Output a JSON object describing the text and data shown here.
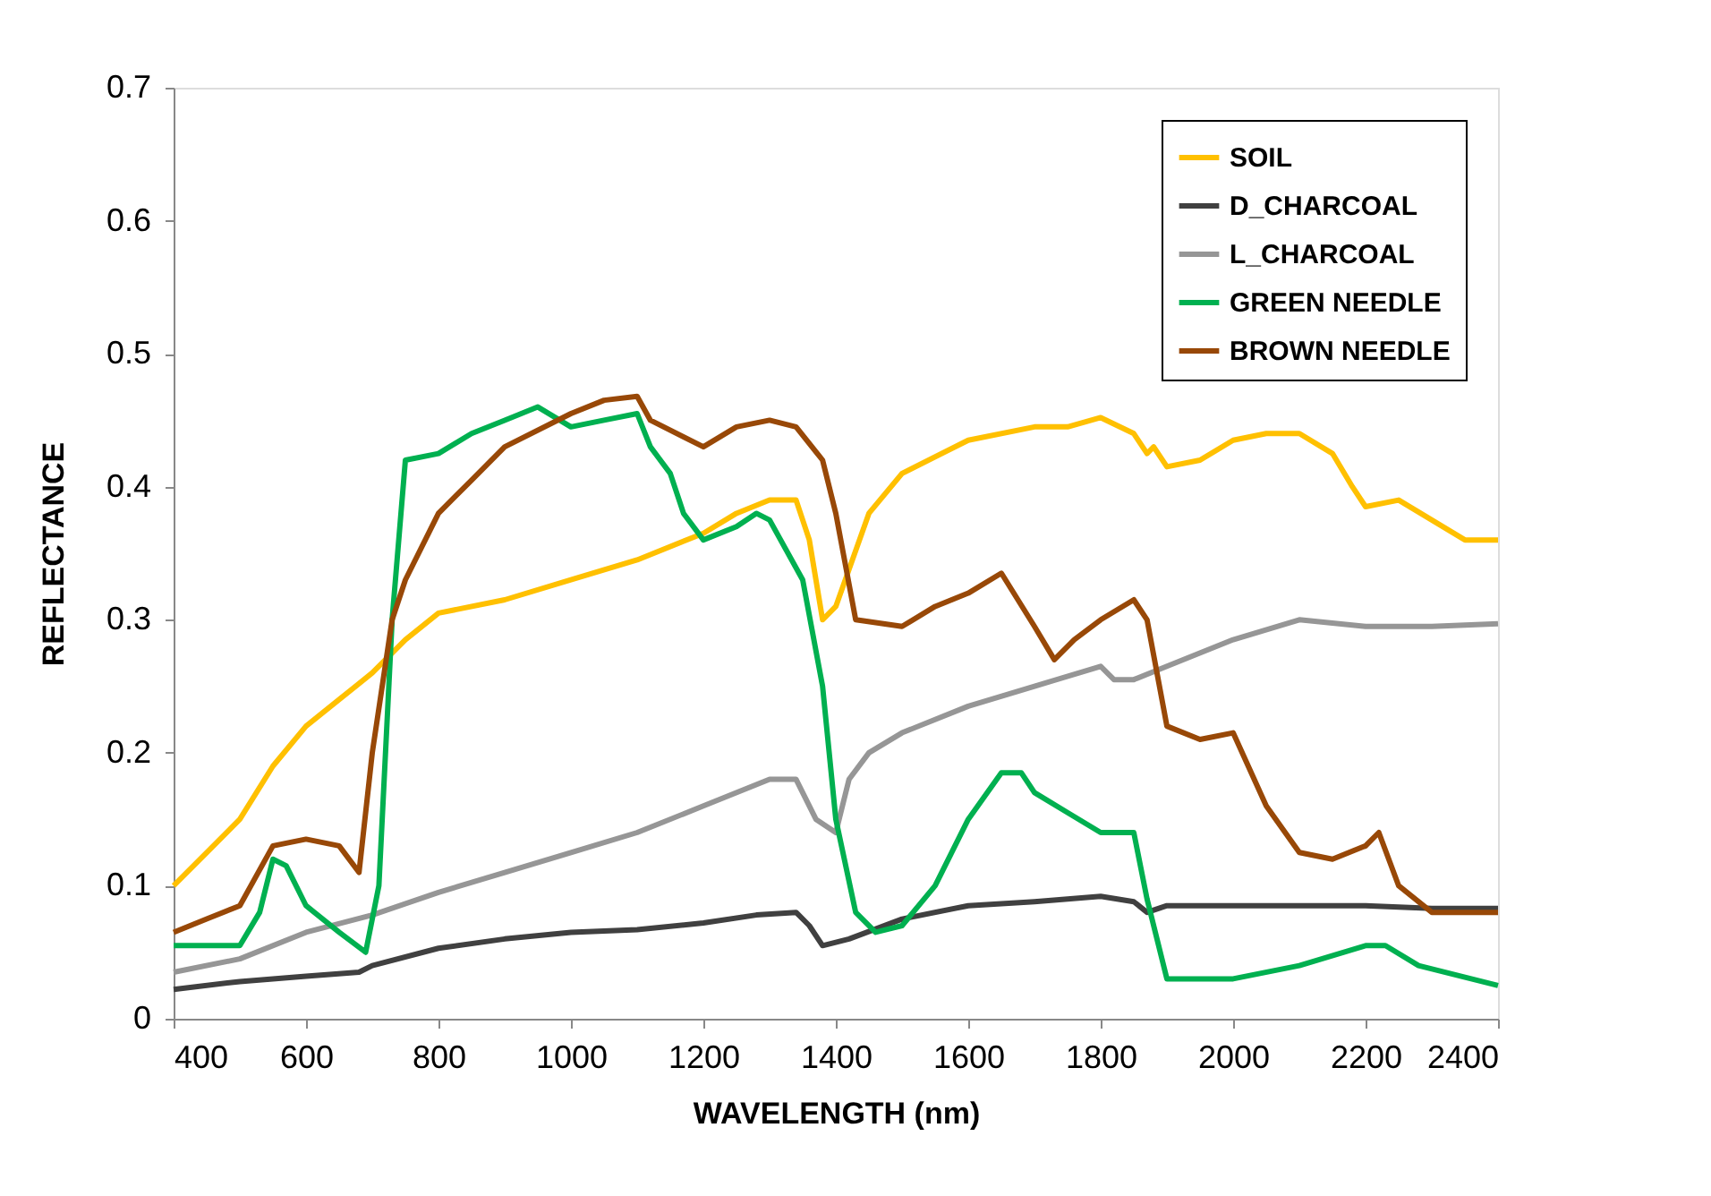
{
  "chart_data": {
    "type": "line",
    "xlabel": "WAVELENGTH (nm)",
    "ylabel": "REFLECTANCE",
    "xlim": [
      400,
      2400
    ],
    "xticks": [
      400,
      600,
      800,
      1000,
      1200,
      1400,
      1600,
      1800,
      2000,
      2200,
      2400
    ],
    "ylim": [
      0,
      0.7
    ],
    "yticks": [
      0,
      0.1,
      0.2,
      0.3,
      0.4,
      0.5,
      0.6,
      0.7
    ],
    "grid": false,
    "legend": "top right",
    "marker": "none",
    "line_style": "solid",
    "series": [
      {
        "name": "SOIL",
        "color": "#ffc000",
        "x": [
          400,
          450,
          500,
          550,
          600,
          650,
          700,
          750,
          800,
          900,
          1000,
          1100,
          1200,
          1250,
          1300,
          1340,
          1360,
          1380,
          1400,
          1450,
          1500,
          1600,
          1700,
          1750,
          1800,
          1850,
          1870,
          1880,
          1900,
          1950,
          2000,
          2050,
          2100,
          2150,
          2180,
          2200,
          2250,
          2300,
          2350,
          2400
        ],
        "values": [
          0.1,
          0.125,
          0.15,
          0.19,
          0.22,
          0.24,
          0.26,
          0.285,
          0.305,
          0.315,
          0.33,
          0.345,
          0.365,
          0.38,
          0.39,
          0.39,
          0.36,
          0.3,
          0.31,
          0.38,
          0.41,
          0.435,
          0.445,
          0.445,
          0.452,
          0.44,
          0.425,
          0.43,
          0.415,
          0.42,
          0.435,
          0.44,
          0.44,
          0.425,
          0.4,
          0.385,
          0.39,
          0.375,
          0.36,
          0.36
        ]
      },
      {
        "name": "D_CHARCOAL",
        "color": "#404040",
        "x": [
          400,
          500,
          600,
          680,
          700,
          800,
          900,
          1000,
          1100,
          1200,
          1280,
          1340,
          1360,
          1380,
          1420,
          1500,
          1600,
          1700,
          1800,
          1850,
          1870,
          1900,
          2000,
          2100,
          2200,
          2300,
          2400
        ],
        "values": [
          0.022,
          0.028,
          0.032,
          0.035,
          0.04,
          0.053,
          0.06,
          0.065,
          0.067,
          0.072,
          0.078,
          0.08,
          0.07,
          0.055,
          0.06,
          0.075,
          0.085,
          0.088,
          0.092,
          0.088,
          0.08,
          0.085,
          0.085,
          0.085,
          0.085,
          0.083,
          0.083
        ]
      },
      {
        "name": "L_CHARCOAL",
        "color": "#969696",
        "x": [
          400,
          500,
          600,
          700,
          800,
          900,
          1000,
          1100,
          1200,
          1300,
          1340,
          1370,
          1400,
          1420,
          1450,
          1500,
          1600,
          1700,
          1800,
          1820,
          1850,
          1900,
          2000,
          2100,
          2200,
          2300,
          2400
        ],
        "values": [
          0.035,
          0.045,
          0.065,
          0.078,
          0.095,
          0.11,
          0.125,
          0.14,
          0.16,
          0.18,
          0.18,
          0.15,
          0.14,
          0.18,
          0.2,
          0.215,
          0.235,
          0.25,
          0.265,
          0.255,
          0.255,
          0.265,
          0.285,
          0.3,
          0.295,
          0.295,
          0.297
        ]
      },
      {
        "name": "GREEN NEEDLE",
        "color": "#00b050",
        "x": [
          400,
          500,
          530,
          550,
          570,
          600,
          650,
          690,
          710,
          730,
          750,
          800,
          850,
          900,
          950,
          1000,
          1050,
          1100,
          1120,
          1150,
          1170,
          1200,
          1250,
          1280,
          1300,
          1350,
          1380,
          1400,
          1430,
          1460,
          1500,
          1550,
          1600,
          1650,
          1680,
          1700,
          1750,
          1800,
          1850,
          1870,
          1900,
          2000,
          2100,
          2200,
          2230,
          2280,
          2400
        ],
        "values": [
          0.055,
          0.055,
          0.08,
          0.12,
          0.115,
          0.085,
          0.065,
          0.05,
          0.1,
          0.3,
          0.42,
          0.425,
          0.44,
          0.45,
          0.46,
          0.445,
          0.45,
          0.455,
          0.43,
          0.41,
          0.38,
          0.36,
          0.37,
          0.38,
          0.375,
          0.33,
          0.25,
          0.15,
          0.08,
          0.065,
          0.07,
          0.1,
          0.15,
          0.185,
          0.185,
          0.17,
          0.155,
          0.14,
          0.14,
          0.09,
          0.03,
          0.03,
          0.04,
          0.055,
          0.055,
          0.04,
          0.025
        ]
      },
      {
        "name": "BROWN NEEDLE",
        "color": "#984807",
        "x": [
          400,
          450,
          500,
          550,
          600,
          650,
          680,
          700,
          730,
          750,
          800,
          850,
          900,
          1000,
          1050,
          1100,
          1120,
          1200,
          1250,
          1300,
          1340,
          1380,
          1400,
          1430,
          1500,
          1550,
          1600,
          1650,
          1700,
          1730,
          1760,
          1800,
          1850,
          1870,
          1900,
          1950,
          2000,
          2050,
          2100,
          2150,
          2200,
          2220,
          2250,
          2300,
          2400
        ],
        "values": [
          0.065,
          0.075,
          0.085,
          0.13,
          0.135,
          0.13,
          0.11,
          0.2,
          0.3,
          0.33,
          0.38,
          0.405,
          0.43,
          0.455,
          0.465,
          0.468,
          0.45,
          0.43,
          0.445,
          0.45,
          0.445,
          0.42,
          0.38,
          0.3,
          0.295,
          0.31,
          0.32,
          0.335,
          0.295,
          0.27,
          0.285,
          0.3,
          0.315,
          0.3,
          0.22,
          0.21,
          0.215,
          0.16,
          0.125,
          0.12,
          0.13,
          0.14,
          0.1,
          0.08,
          0.08
        ]
      }
    ]
  }
}
